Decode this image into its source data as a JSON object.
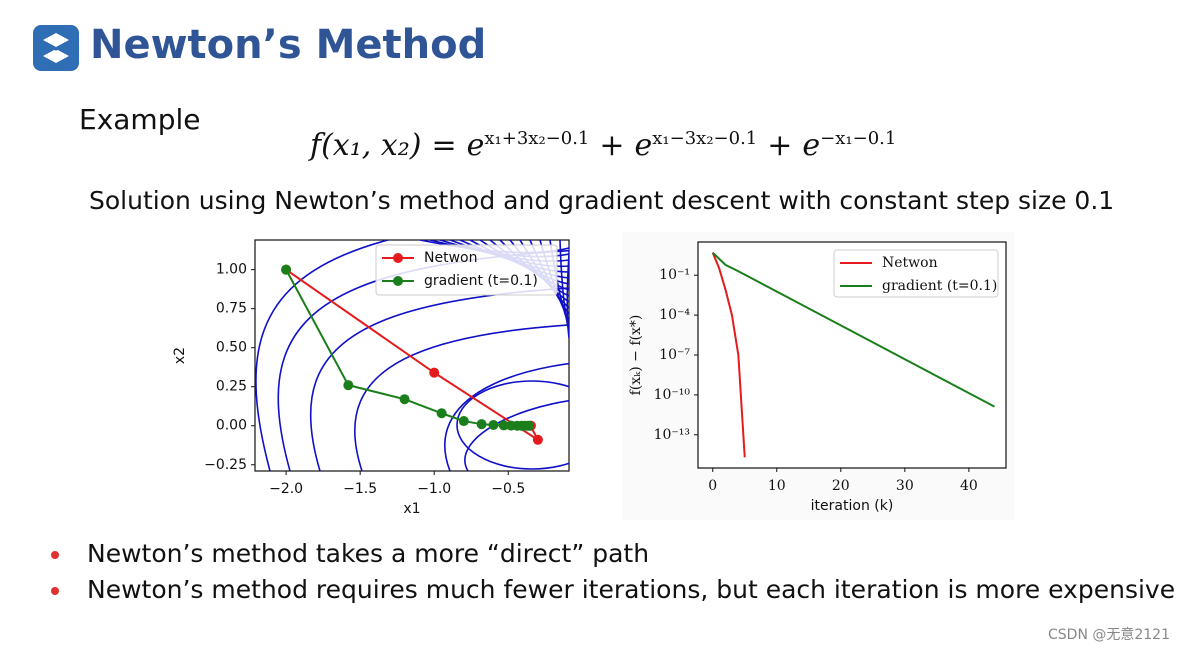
{
  "header": {
    "title": "Newton’s Method"
  },
  "example_label": "Example",
  "formula": {
    "lhs": "f(x₁, x₂)",
    "operators": [
      "=",
      "+",
      "+"
    ],
    "terms": [
      {
        "base": "e",
        "exp": "x₁+3x₂−0.1"
      },
      {
        "base": "e",
        "exp": "x₁−3x₂−0.1"
      },
      {
        "base": "e",
        "exp": "−x₁−0.1"
      }
    ]
  },
  "subtitle": "Solution using Newton’s method and gradient descent with constant step size 0.1",
  "chart_data": [
    {
      "type": "line",
      "markers": true,
      "legend": "upper right",
      "xlabel": "x1",
      "ylabel": "x2",
      "xlim": [
        -2.21,
        -0.09
      ],
      "ylim": [
        -0.29,
        1.19
      ],
      "xticks": [
        {
          "value": -2.0,
          "label": "−2.0"
        },
        {
          "value": -1.5,
          "label": "−1.5"
        },
        {
          "value": -1.0,
          "label": "−1.0"
        },
        {
          "value": -0.5,
          "label": "−0.5"
        }
      ],
      "yticks": [
        {
          "value": 1.0,
          "label": "1.00"
        },
        {
          "value": 0.75,
          "label": "0.75"
        },
        {
          "value": 0.5,
          "label": "0.50"
        },
        {
          "value": 0.25,
          "label": "0.25"
        },
        {
          "value": 0.0,
          "label": "0.00"
        },
        {
          "value": -0.25,
          "label": "−0.25"
        }
      ],
      "series": [
        {
          "name": "Netwon",
          "color": "#e41a1c",
          "x": [
            -2.0,
            -1.0,
            -0.3,
            -0.35,
            -0.347
          ],
          "values": [
            1.0,
            0.34,
            -0.09,
            0.0,
            0.0
          ]
        },
        {
          "name": "gradient (t=0.1)",
          "color": "#1a7f1a",
          "x": [
            -2.0,
            -1.58,
            -1.2,
            -0.95,
            -0.8,
            -0.68,
            -0.6,
            -0.53,
            -0.48,
            -0.44,
            -0.41,
            -0.39,
            -0.37,
            -0.36
          ],
          "values": [
            1.0,
            0.26,
            0.17,
            0.08,
            0.03,
            0.01,
            0.005,
            0.002,
            0.001,
            0.0,
            0.0,
            0.0,
            0.0,
            0.0
          ]
        }
      ]
    },
    {
      "type": "line",
      "markers": false,
      "ylog": true,
      "legend": "upper right",
      "xlabel": "iteration (k)",
      "ylabel": "f(xₖ) − f(x*)",
      "xlim": [
        -2.3,
        45.8
      ],
      "ylim": [
        3.16e-16,
        31.6
      ],
      "xticks": [
        0,
        10,
        20,
        30,
        40
      ],
      "yticks": [
        {
          "value": 0.1,
          "label": "10⁻¹"
        },
        {
          "value": 0.0001,
          "label": "10⁻⁴"
        },
        {
          "value": 1e-07,
          "label": "10⁻⁷"
        },
        {
          "value": 1e-10,
          "label": "10⁻¹⁰"
        },
        {
          "value": 1e-13,
          "label": "10⁻¹³"
        }
      ],
      "series": [
        {
          "name": "Netwon",
          "color": "#e41a1c",
          "x": [
            0,
            1,
            2,
            3,
            4,
            5
          ],
          "values": [
            5,
            0.34,
            0.008,
            0.0001,
            1e-07,
            2e-15
          ]
        },
        {
          "name": "gradient (t=0.1)",
          "color": "#1a7f1a",
          "x": [
            0,
            2,
            4,
            44
          ],
          "values": [
            5,
            0.6,
            0.2,
            1.3e-11
          ]
        }
      ]
    }
  ],
  "bullets": [
    "Newton’s method takes a more “direct” path",
    "Newton’s method requires much fewer iterations, but each iteration is more expensive"
  ],
  "watermark": "CSDN @无意2121"
}
